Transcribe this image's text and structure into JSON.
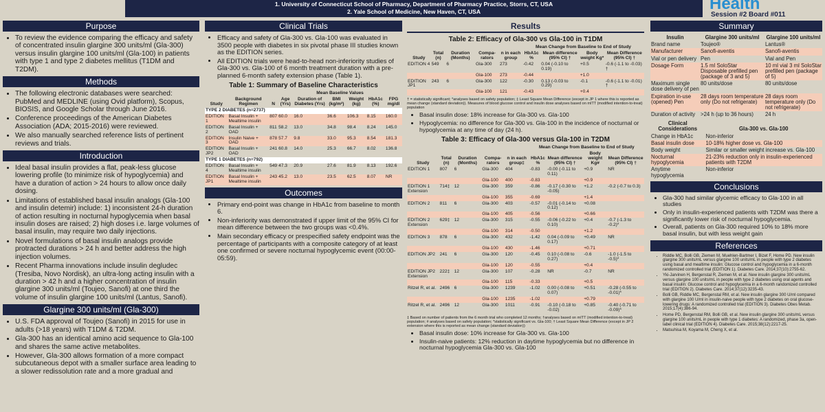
{
  "header": {
    "affiliations": [
      "1.   University of Connecticut School of Pharmacy, Department of Pharmacy Practice, Storrs, CT, USA",
      "2.   Yale School of Medicine, New Haven, CT, USA"
    ],
    "logo": "Health",
    "session": "Session #2 Board #011"
  },
  "columns": [
    {
      "sections": [
        {
          "heading": "Purpose",
          "items": [
            {
              "bullets": [
                "To review the evidence comparing the efficacy and safety of concentrated insulin glargine 300 units/ml (Gla-300) versus insulin glargine 100 units/ml (Gla-100) in patients with type 1 and type 2 diabetes mellitus (T1DM and T2DM)."
              ]
            }
          ]
        },
        {
          "heading": "Methods",
          "items": [
            {
              "bullets": [
                "The following electronic databases were searched: PubMed and MEDLINE (using Ovid platform), Scopus, BIOSIS, and Google Scholar through June 2016.",
                "Conference proceedings of the American Diabetes Association (ADA; 2015-2016) were reviewed.",
                "We also manually searched reference lists of pertinent reviews and trials."
              ]
            }
          ]
        },
        {
          "heading": "Introduction",
          "items": [
            {
              "bullets": [
                "Ideal basal insulin provides a flat, peak-less glucose lowering profile (to minimize risk of hypoglycemia) and have a duration of action > 24 hours to allow once daily dosing.",
                "Limitations of established basal insulin analogs (Gla-100 and insulin detemir) include: 1) inconsistent 24-h duration of action resulting in nocturnal hypoglycemia when basal insulin doses are raised; 2) high doses i.e. large volumes of basal insulin, may require two daily injections.",
                "Novel formulations of basal insulin analogs provide protracted durations > 24 h and better address the high injection volumes.",
                "Recent Pharma innovations include insulin degludec (Tresiba, Novo Nordisk), an ultra-long acting insulin with a duration > 42 h and a higher concentration of insulin glargine 300 units/ml (Toujeo, Sanofi) at one third the volume of insulin glargine 100 units/ml (Lantus, Sanofi)."
              ]
            }
          ]
        },
        {
          "heading": "Glargine 300 units/ml (Gla-300)",
          "items": [
            {
              "bullets": [
                "U.S. FDA approval of Toujeo (Sanofi) in 2015 for use in adults (>18 years) with T1DM & T2DM.",
                "Gla-300 has an identical amino acid sequence to Gla-100 and shares the same active metabolites.",
                "However, Gla-300 allows formation of a more compact subcutaneous depot with a smaller surface area leading to a slower redissolution rate and a more gradual and"
              ]
            }
          ]
        }
      ]
    },
    {
      "sections": [
        {
          "heading": "Clinical Trials",
          "items": [
            {
              "bullets": [
                "Efficacy and safety of Gla-300 vs. Gla-100 was evaluated in 3500  people with diabetes in six pivotal phase III studies known as the EDITION series.",
                "All EDITION trials were head-to-head non-inferiority studies of Gla-300 vs. Gla-100 of 6 month treatment duration with a pre-planned 6-month safety extension phase (Table 1)."
              ]
            },
            {
              "title": "Table 1: Summary of Baseline Characteristics",
              "header": [
                [
                  "Study",
                  "Background Regimen",
                  "N",
                  "Mean Baseline Values"
                ],
                [
                  "Age (Yrs)",
                  "Duration of Diabetes (Yrs)",
                  "BMI (kg/m²)",
                  "Weight (kg)",
                  "HbA1c (%)",
                  "FPG mg/dl"
                ]
              ],
              "rows": [
                {
                  "group": "TYPE 2 DIABETES (n=2737)"
                },
                [
                  "EDITION 1",
                  "Basal Insulin + Mealtime insulin",
                  "807",
                  "60.0",
                  "16.0",
                  "36.6",
                  "106.3",
                  "8.15",
                  "160.0"
                ],
                [
                  "EDITION 2",
                  "Basal Insulin + OAD",
                  "811",
                  "58.2",
                  "13.0",
                  "34.8",
                  "98.4",
                  "8.24",
                  "145.0"
                ],
                [
                  "EDITION 3",
                  "Insulin Naive + OAD",
                  "878",
                  "57.7",
                  "9.8",
                  "33.0",
                  "95.3",
                  "8.54",
                  "181.3"
                ],
                [
                  "EDITION JP2",
                  "Basal Insulin + OAD",
                  "241",
                  "60.8",
                  "14.0",
                  "25.3",
                  "66.7",
                  "8.02",
                  "136.8"
                ],
                {
                  "group": "TYPE 1 DIABETES (n=792)"
                },
                [
                  "EDITION 4",
                  "Basal Insulin + Mealtime insulin",
                  "549",
                  "47.3",
                  "20.9",
                  "27.6",
                  "81.9",
                  "8.13",
                  "192.6"
                ],
                [
                  "EDITION JP1",
                  "Basal Insulin + Mealtime insulin",
                  "243",
                  "45.2",
                  "13.0",
                  "23.5",
                  "62.5",
                  "8.07",
                  "NR"
                ]
              ]
            }
          ]
        },
        {
          "heading": "Outcomes",
          "items": [
            {
              "bullets": [
                "Primary end-point was change in HbA1c from baseline to month 6.",
                "Non-inferiority was demonstrated if upper limit of the 95% CI for mean difference between the two groups was <0.4%.",
                "Main secondary efficacy or prespecified safety endpoint was the percentage of participants with a composite category of at least one confirmed or severe nocturnal hypoglycemic event (00:00-05:59)."
              ]
            }
          ]
        }
      ]
    },
    {
      "sections": [
        {
          "heading": "Results",
          "items": [
            {
              "title": "Table 2: Efficacy of Gla-300 vs Gla-100 in T1DM",
              "header": [
                [
                  "Study",
                  "Total (n)",
                  "Duration (Months)",
                  "Compa-rators",
                  "n in each group",
                  "Mean Change from Baseline to End of Study"
                ],
                [
                  "HbA1c %",
                  "Mean difference (95% CI) †",
                  "Body weight Kg*",
                  "Mean Difference (95% CI) †"
                ]
              ],
              "rows": [
                [
                  "EDITION 4",
                  "549",
                  "6",
                  "Gla-300",
                  "273",
                  "-0.42",
                  "0.04 (-0.10 to 0.19)",
                  "+0.5",
                  "-0.6 (-1.1 to -0.03) †"
                ],
                [
                  null,
                  null,
                  null,
                  "Gla-100",
                  "273",
                  "-0.44",
                  null,
                  "+1.0",
                  null
                ],
                [
                  "EDITION JP1",
                  "243",
                  "6",
                  "Gla-300",
                  "122",
                  "-0.30",
                  "0.13 (-0.03 to 0.29)",
                  "-0.1",
                  "-0.6 (-1.1 to -0.01) †"
                ],
                [
                  null,
                  null,
                  null,
                  "Gla-100",
                  "121",
                  "-0.43",
                  null,
                  "+0.4",
                  null
                ]
              ]
            },
            {
              "note": "† = statistically significant; *analyses based on safety population; ‡ Least Square Mean Difference (except in JP 1 where this is reported as mean change (standard deviation)). Measures of blood glucose control and insulin dose analyses based on mITT (modified intention-to-treat) population"
            },
            {
              "bullets": [
                "Basal insulin dose: 18% increase for Gla-300 vs. Gla-100",
                "Hypoglycemia: no difference for Gla-300 vs. Gla-100 in the incidence of nocturnal or hypoglycemia at any time of day (24 h)."
              ]
            },
            {
              "title": "Table 3: Efficacy of Gla-300 versus Gla-100 in T2DM",
              "header": [
                [
                  "Study",
                  "Total (n)",
                  "Duration (Months)",
                  "Compa-rators",
                  "n in each group‡",
                  "Mean Change from Baseline to End of Study"
                ],
                [
                  "HbA1c %",
                  "Mean difference (95% CI) †",
                  "Body weight Kg#",
                  "Mean Difference (95% CI) †"
                ]
              ],
              "rows": [
                [
                  "EDITION 1",
                  "807",
                  "6",
                  "Gla-300",
                  "404",
                  "-0.83",
                  "-0.00 (-0.11 to 0.11)",
                  "+0.9",
                  "NR"
                ],
                [
                  null,
                  null,
                  null,
                  "Gla-100",
                  "400",
                  "-0.83",
                  null,
                  "+0.9",
                  null
                ],
                [
                  "EDITION 1 Extension",
                  "714‡",
                  "12",
                  "Gla-300",
                  "359",
                  "-0.86",
                  "-0.17 (-0.30 to -0.05)",
                  "+1.2",
                  "-0.2 (-0.7 to 0.3)"
                ],
                [
                  null,
                  null,
                  null,
                  "Gla-100",
                  "355",
                  "-0.69",
                  null,
                  "+1.4",
                  null
                ],
                [
                  "EDITION 2",
                  "811",
                  "6",
                  "Gla-300",
                  "403",
                  "-0.57",
                  "-0.01 (-0.14 to 0.12)",
                  "+0.08",
                  null
                ],
                [
                  null,
                  null,
                  null,
                  "Gla-100",
                  "405",
                  "-0.56",
                  null,
                  "+0.66",
                  null
                ],
                [
                  "EDITION 2 Extension",
                  "629‡",
                  "12",
                  "Gla-300",
                  "315",
                  "-0.55",
                  "-0.06 (-0.22 to 0.10)",
                  "+0.4",
                  "-0.7 (-1.3 to -0.2)*"
                ],
                [
                  null,
                  null,
                  null,
                  "Gla-100",
                  "314",
                  "-0.50",
                  null,
                  "+1.2",
                  null
                ],
                [
                  "EDITION 3",
                  "878",
                  "6",
                  "Gla-300",
                  "432",
                  "-1.42",
                  "0.04 (-0.09 to 0.17)",
                  "+0.49",
                  "NR"
                ],
                [
                  null,
                  null,
                  null,
                  "Gla-100",
                  "430",
                  "-1.46",
                  null,
                  "+0.71",
                  null
                ],
                [
                  "EDITION JP2",
                  "241",
                  "6",
                  "Gla-300",
                  "120",
                  "-0.45",
                  "0.10 (-0.08 to 0.27)",
                  "-0.6",
                  "-1.0 (-1.5 to -0.5)*"
                ],
                [
                  null,
                  null,
                  null,
                  "Gla-100",
                  "120",
                  "-0.55",
                  null,
                  "+0.4",
                  null
                ],
                [
                  "EDITION JP2 Extension",
                  "222‡",
                  "12",
                  "Gla-300",
                  "107",
                  "-0.28",
                  "NR",
                  "-0.7",
                  "NR"
                ],
                [
                  null,
                  null,
                  null,
                  "Gla-100",
                  "115",
                  "-0.33",
                  null,
                  "+0.5",
                  null
                ],
                [
                  "Ritzel R, et al.",
                  "2496",
                  "6",
                  "Gla-300",
                  "1239",
                  "-1.02",
                  "0.00 (-0.08 to 0.07)",
                  "+0.51",
                  "-0.28 (-0.55 to -0.01)*"
                ],
                [
                  null,
                  null,
                  null,
                  "Gla-100",
                  "1235",
                  "-1.02",
                  null,
                  "+0.79",
                  null
                ],
                [
                  "Ritzel R, et al.",
                  "2496",
                  "12",
                  "Gla-300",
                  "1011",
                  "-0.91",
                  "-0.10 (-0.18 to -0.02)",
                  "+0.85",
                  "-0.40 (-0.71 to -0.09)*"
                ]
              ]
            },
            {
              "note": "‡ Based on number of patients from the 6 month trial who completed 12 months; †analyses based on mITT (modified intention-to-treat) population; # analyses based on safety population; *statistically significant vs. Gla-100; † Least Square Mean Difference (except in JP 2 extension where this is reported as mean change (standard deviation))"
            },
            {
              "bullets": [
                "Basal insulin dose: 10% increase for Gla-300 vs. Gla-100",
                "Insulin-naive patients: 12% reduction in daytime hypoglycemia but no difference in nocturnal hypoglycemia Gla-300 vs. Gla-100"
              ]
            }
          ]
        }
      ]
    },
    {
      "sections": [
        {
          "heading": "Summary",
          "items": [
            {
              "header": [
                [
                  "Insulin",
                  "Glargine 300 units/ml",
                  "Glargine 100 units/ml"
                ]
              ],
              "rows": [
                [
                  "Brand name",
                  "Toujeo®",
                  "Lantus®"
                ],
                [
                  "Manufacturer",
                  "Sanofi-aventis",
                  "Sanofi-aventis"
                ],
                [
                  "Vial or pen delivery",
                  "Pen",
                  "Vial and Pen"
                ],
                [
                  "Dosage Form",
                  "1.5 ml SoloStar Disposable prefilled pen (package of 3 and 5)",
                  "10 ml vial 3 ml SoloStar prefilled pen (package of 5)"
                ],
                [
                  "Maximum single dose delivery of pen",
                  "80 units/dose",
                  "80 units/dose"
                ],
                [
                  "Expiration in-use (opened) Pen",
                  "28 days room temperature only (Do not refrigerate)",
                  "28 days room temperature only (Do not refrigerate)"
                ],
                [
                  "Duration of activity",
                  ">24 h (up to 36 hours)",
                  "24 h"
                ]
              ]
            },
            {
              "header": [
                [
                  "Clinical Considerations",
                  "Gla-300 vs. Gla-100"
                ]
              ],
              "rows": [
                [
                  "Change in HbA1c",
                  "Non-inferior"
                ],
                [
                  "Basal insulin dose",
                  "10-18% higher dose vs. Gla-100"
                ],
                [
                  "Body weight",
                  "Similar or smaller weight increase vs. Gla-100"
                ],
                [
                  "Nocturnal hypoglycemia",
                  "21-23% reduction only in insulin-experienced patients with T2DM"
                ],
                [
                  "Anytime hypoglycemia",
                  "Non-inferior"
                ]
              ]
            }
          ]
        },
        {
          "heading": "Conclusions",
          "items": [
            {
              "bullets": [
                "Gla-300 had similar glycemic efficacy to Gla-100 in all studies",
                "Only in insulin-experienced patients with T2DM was there a significantly lower risk of nocturnal hypoglycemia.",
                "Overall, patients on Gla-300 required 10% to 18% more basal insulin, but with less weight gain"
              ]
            }
          ]
        },
        {
          "heading": "References",
          "items": [
            {
              "bullets": [
                "Riddle MC, Bolli GB, Ziemen M, Muehlen-Bartmer I, Bizet F, Home PD. New insulin glargine 300 units/mL versus glargine 100 units/mL in people with type 2 diabetes using basal and mealtime insulin: Glucose control and hypoglycemia in a 6-month randomized controlled trial (EDITION 1). Diabetes Care. 2014;37(10):2755-62.",
                "Yki-Jarvinen H, Bergenstal R, Ziemen M, et al. New insulin glargine 300 units/mL versus glargine 100 units/mL in people with type 2 diabetes using oral agents and basal insulin: Glucose control and hypoglycemia in a 6-month randomized controlled trial (EDITION 2). Diabetes Care. 2014;37(12):3235-43.",
                "Bolli GB, Riddle MC, Bergenstal RM, et al. New insulin glargine 300 U/ml compared with glargine 100 U/ml in insulin-naive people with type 2 diabetes on oral glucose-lowering drugs: A randomized controlled trial (EDITION 3). Diabetes Obes Metab. 2015;17(4):386-94.",
                "Home PD, Bergenstal RM, Bolli GB, et al. New insulin glargine 300 units/mL versus glargine 100 units/mL in people with type 1 diabetes: A randomized, phase 3a, open-label clinical trial (EDITION 4). Diabetes Care. 2015;38(12):2217-25.",
                "Matsuhisa M, Koyama M, Cheng X, et al."
              ]
            }
          ]
        }
      ]
    }
  ]
}
